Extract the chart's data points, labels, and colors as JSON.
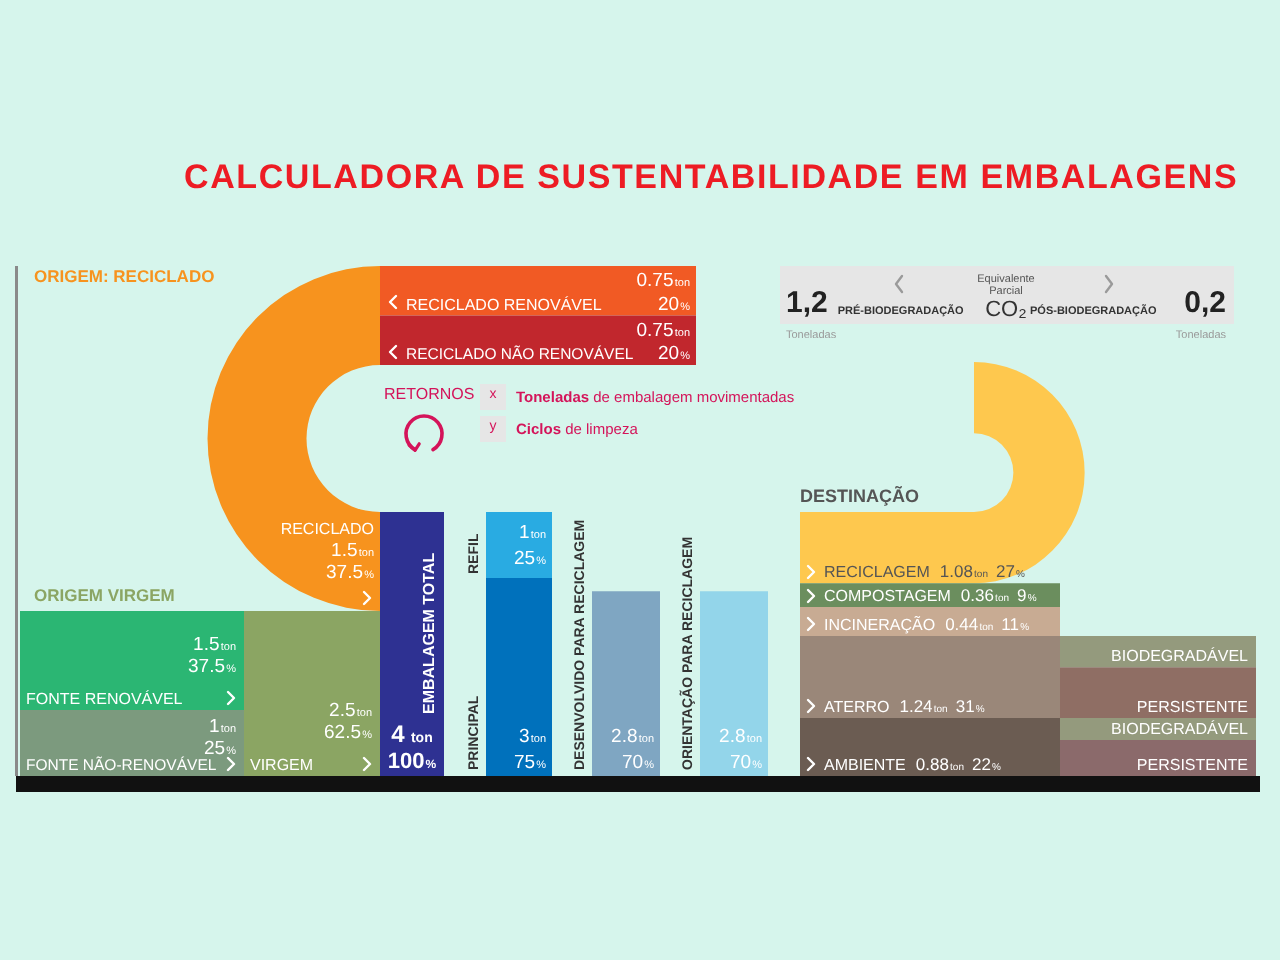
{
  "chart_data": {
    "type": "other",
    "title": "CALCULADORA DE SUSTENTABILIDADE EM EMBALAGENS",
    "categories": [
      "RECICLADO",
      "FONTE RENOVÁVEL",
      "FONTE NÃO-RENOVÁVEL",
      "VIRGEM",
      "EMBALAGEM TOTAL",
      "REFIL",
      "PRINCIPAL",
      "DESENVOLVIDO PARA RECICLAGEM",
      "ORIENTAÇÃO PARA RECICLAGEM",
      "RECICLADO RENOVÁVEL",
      "RECICLADO NÃO RENOVÁVEL",
      "RECICLAGEM",
      "COMPOSTAGEM",
      "INCINERAÇÃO",
      "ATERRO",
      "AMBIENTE",
      "BIODEGRADÁVEL",
      "PERSISTENTE",
      "BIODEGRADÁVEL",
      "PERSISTENTE"
    ],
    "series": [
      {
        "colors": [
          "#f7931e",
          "#2bb673",
          "#7c9a7e",
          "#8ba563",
          "#2e3192",
          "#29abe2",
          "#0071bc",
          "#7fa6c2",
          "#93d5ea",
          "#f15a24",
          "#c1272d",
          "#fec84e",
          "#6b8e5e",
          "#c8ab93",
          "#9a8779",
          "#6b5c52",
          "#949a7d",
          "#8f6e64",
          "#949a7d",
          "#8b6a6b"
        ],
        "values": [
          1.5,
          1.5,
          1,
          2.5,
          4,
          1,
          3,
          2.8,
          2.8,
          0.75,
          0.75,
          1.08,
          0.36,
          0.44,
          1.24,
          0.88,
          null,
          null,
          null,
          null
        ],
        "value_labels": [
          "1.5ton",
          "1.5ton",
          "1ton",
          "2.5ton",
          "4 ton",
          "1ton",
          "3ton",
          "2.8ton",
          "2.8ton",
          "0.75ton",
          "0.75ton",
          "1.08ton",
          "0.36ton",
          "0.44ton",
          "1.24ton",
          "0.88ton",
          null,
          null,
          null,
          null
        ]
      },
      {
        "values": [
          37.5,
          37.5,
          25,
          62.5,
          100,
          25,
          75,
          70,
          70,
          20,
          20,
          27,
          9,
          11,
          31,
          22,
          null,
          null,
          null,
          null
        ],
        "value_labels": [
          "37.5%",
          "37.5%",
          "25%",
          "62.5%",
          "100%",
          "25%",
          "75%",
          "70%",
          "70%",
          "20%",
          "20%",
          "27%",
          "9%",
          "11%",
          "31%",
          "22%",
          null,
          null,
          null,
          null
        ]
      }
    ],
    "annotations": [
      "ORIGEM: RECICLADO",
      "ORIGEM VIRGEM",
      "DESTINAÇÃO",
      "RETORNOS",
      "x",
      "Toneladas de embalagem movimentadas",
      "y",
      "Ciclos de limpeza",
      "Equivalente",
      "Parcial",
      "CO₂",
      "PRÉ-BIODEGRADAÇÃO",
      "PÓS-BIODEGRADAÇÃO",
      "1,2",
      "Toneladas",
      "0,2",
      "Toneladas"
    ]
  }
}
